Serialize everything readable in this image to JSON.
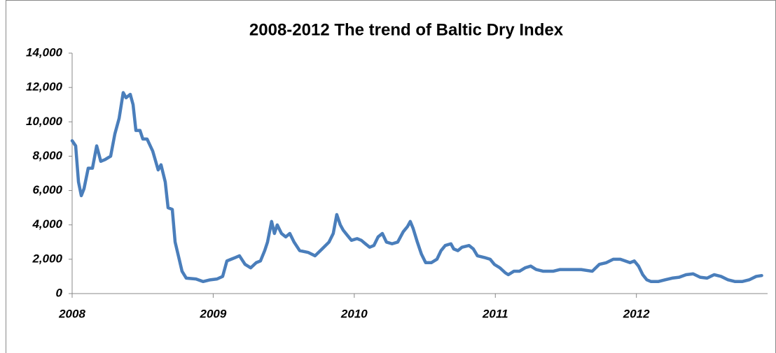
{
  "chart_data": {
    "type": "line",
    "title": "2008-2012   The trend of Baltic Dry Index",
    "x": [
      2008,
      2008.025,
      2008.045,
      2008.065,
      2008.084,
      2008.114,
      2008.144,
      2008.174,
      2008.203,
      2008.233,
      2008.273,
      2008.303,
      2008.333,
      2008.362,
      2008.382,
      2008.412,
      2008.432,
      2008.452,
      2008.481,
      2008.501,
      2008.531,
      2008.571,
      2008.61,
      2008.63,
      2008.66,
      2008.68,
      2008.71,
      2008.73,
      2008.759,
      2008.779,
      2008.809,
      2008.878,
      2008.928,
      2008.978,
      2009.027,
      2009.067,
      2009.097,
      2009.127,
      2009.157,
      2009.186,
      2009.226,
      2009.266,
      2009.305,
      2009.335,
      2009.365,
      2009.385,
      2009.414,
      2009.434,
      2009.454,
      2009.484,
      2009.514,
      2009.543,
      2009.573,
      2009.613,
      2009.672,
      2009.722,
      2009.772,
      2009.821,
      2009.851,
      2009.876,
      2009.901,
      2009.921,
      2009.95,
      2009.98,
      2010.02,
      2010.05,
      2010.079,
      2010.109,
      2010.139,
      2010.169,
      2010.199,
      2010.228,
      2010.268,
      2010.308,
      2010.347,
      2010.377,
      2010.397,
      2010.417,
      2010.447,
      2010.476,
      2010.506,
      2010.546,
      2010.586,
      2010.615,
      2010.645,
      2010.685,
      2010.705,
      2010.734,
      2010.764,
      2010.814,
      2010.844,
      2010.873,
      2010.923,
      2010.963,
      2010.993,
      2011.032,
      2011.072,
      2011.092,
      2011.131,
      2011.171,
      2011.211,
      2011.251,
      2011.29,
      2011.34,
      2011.409,
      2011.459,
      2011.538,
      2011.608,
      2011.687,
      2011.737,
      2011.787,
      2011.836,
      2011.886,
      2011.955,
      2011.985,
      2012.015,
      2012.045,
      2012.074,
      2012.104,
      2012.154,
      2012.203,
      2012.253,
      2012.303,
      2012.352,
      2012.402,
      2012.452,
      2012.501,
      2012.551,
      2012.6,
      2012.65,
      2012.7,
      2012.749,
      2012.799,
      2012.849,
      2012.888
    ],
    "series": [
      {
        "name": "Baltic Dry Index",
        "color": "#4a7ebb",
        "values": [
          8900,
          8600,
          6500,
          5700,
          6100,
          7300,
          7300,
          8600,
          7700,
          7800,
          8000,
          9300,
          10200,
          11700,
          11400,
          11600,
          11000,
          9500,
          9500,
          9000,
          9000,
          8300,
          7200,
          7500,
          6500,
          5000,
          4900,
          3000,
          2000,
          1300,
          900,
          850,
          700,
          800,
          850,
          1000,
          1900,
          2000,
          2100,
          2200,
          1700,
          1500,
          1800,
          1900,
          2500,
          3000,
          4200,
          3500,
          4000,
          3500,
          3300,
          3500,
          3000,
          2500,
          2400,
          2200,
          2600,
          3000,
          3500,
          4600,
          4000,
          3700,
          3400,
          3100,
          3200,
          3100,
          2900,
          2700,
          2800,
          3300,
          3500,
          3000,
          2900,
          3000,
          3600,
          3900,
          4200,
          3800,
          3000,
          2300,
          1800,
          1800,
          2000,
          2500,
          2800,
          2900,
          2600,
          2500,
          2700,
          2800,
          2600,
          2200,
          2100,
          2000,
          1700,
          1500,
          1200,
          1100,
          1300,
          1300,
          1500,
          1600,
          1400,
          1300,
          1300,
          1400,
          1400,
          1400,
          1300,
          1700,
          1800,
          2000,
          2000,
          1800,
          1900,
          1600,
          1100,
          800,
          700,
          700,
          800,
          900,
          950,
          1100,
          1150,
          950,
          900,
          1100,
          1000,
          800,
          700,
          700,
          800,
          1000,
          1050
        ]
      }
    ],
    "xlim": [
      2008,
      2012.93
    ],
    "xticks": [
      2008,
      2009,
      2010,
      2011,
      2012
    ],
    "ylim": [
      0,
      14000
    ],
    "yticks": [
      0,
      {
        "value": 2000,
        "label": "2,000"
      },
      {
        "value": 4000,
        "label": "4,000"
      },
      {
        "value": 6000,
        "label": "6,000"
      },
      {
        "value": 8000,
        "label": "8,000"
      },
      {
        "value": 10000,
        "label": "10,000"
      },
      {
        "value": 12000,
        "label": "12,000"
      },
      {
        "value": 14000,
        "label": "14,000"
      }
    ],
    "grid": false
  }
}
